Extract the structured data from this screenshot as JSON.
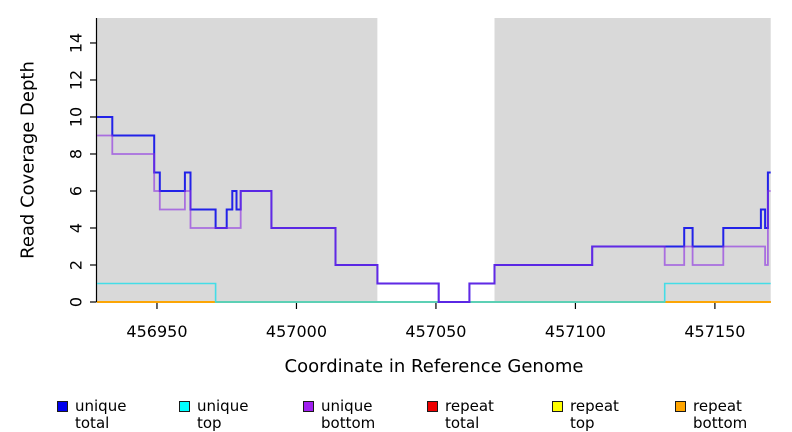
{
  "chart_data": {
    "type": "step-line",
    "title": "",
    "xlabel": "Coordinate in Reference Genome",
    "ylabel": "Read Coverage Depth",
    "xlim": [
      456928.5,
      457170
    ],
    "ylim": [
      0,
      15.35
    ],
    "x_ticks": [
      456950,
      457000,
      457050,
      457100,
      457150
    ],
    "y_ticks": [
      0,
      2,
      4,
      6,
      8,
      10,
      12,
      14
    ],
    "grid": false,
    "plot_background": "#d9d9d9",
    "unshaded_band": {
      "from": 457029,
      "to": 457071,
      "color": "#ffffff"
    },
    "zero_line_blend": {
      "from": 456971,
      "to": 457132,
      "color": "#7cc47c"
    },
    "axis_color": "#000000",
    "series": [
      {
        "name": "unique total",
        "color": "#2222e8",
        "swatch_color": "#0000ee",
        "width": 2,
        "opacity": 1,
        "steps": [
          [
            456928.5,
            10
          ],
          [
            456934,
            9
          ],
          [
            456949,
            7
          ],
          [
            456951,
            6
          ],
          [
            456960,
            7
          ],
          [
            456962,
            5
          ],
          [
            456971,
            4
          ],
          [
            456975,
            5
          ],
          [
            456977,
            6
          ],
          [
            456978.5,
            5
          ],
          [
            456980,
            6
          ],
          [
            456991,
            4
          ],
          [
            457014,
            2
          ],
          [
            457029,
            1
          ],
          [
            457051,
            0
          ],
          [
            457062,
            1
          ],
          [
            457071,
            2
          ],
          [
            457106,
            3
          ],
          [
            457139,
            4
          ],
          [
            457142,
            3
          ],
          [
            457153,
            4
          ],
          [
            457166.5,
            5
          ],
          [
            457168,
            4
          ],
          [
            457169,
            7
          ],
          [
            457170,
            7
          ]
        ]
      },
      {
        "name": "unique top",
        "color": "#33dde8",
        "swatch_color": "#00ffff",
        "width": 1.6,
        "opacity": 0.9,
        "steps": [
          [
            456928.5,
            1
          ],
          [
            456971,
            0
          ],
          [
            457132,
            1
          ],
          [
            457170,
            1
          ]
        ]
      },
      {
        "name": "unique bottom",
        "color": "#8a2be2",
        "swatch_color": "#a020f0",
        "width": 1.8,
        "opacity": 0.62,
        "steps": [
          [
            456928.5,
            9
          ],
          [
            456934,
            8
          ],
          [
            456949,
            6
          ],
          [
            456951,
            5
          ],
          [
            456960,
            6
          ],
          [
            456962,
            4
          ],
          [
            456980,
            6
          ],
          [
            456991,
            4
          ],
          [
            457014,
            2
          ],
          [
            457029,
            1
          ],
          [
            457051,
            0
          ],
          [
            457062,
            1
          ],
          [
            457071,
            2
          ],
          [
            457106,
            3
          ],
          [
            457132,
            2
          ],
          [
            457139,
            3
          ],
          [
            457142,
            2
          ],
          [
            457153,
            3
          ],
          [
            457168,
            2
          ],
          [
            457169,
            6
          ],
          [
            457170,
            6
          ]
        ]
      },
      {
        "name": "repeat total",
        "color": "#ee0000",
        "swatch_color": "#ee0000",
        "width": 1.5,
        "opacity": 1,
        "steps": [
          [
            456928.5,
            0
          ],
          [
            457170,
            0
          ]
        ]
      },
      {
        "name": "repeat top",
        "color": "#ffff00",
        "swatch_color": "#ffff00",
        "width": 1.5,
        "opacity": 1,
        "steps": [
          [
            456928.5,
            0
          ],
          [
            457170,
            0
          ]
        ]
      },
      {
        "name": "repeat bottom",
        "color": "#ffa500",
        "swatch_color": "#ffa500",
        "width": 1.8,
        "opacity": 1,
        "steps": [
          [
            456928.5,
            0
          ],
          [
            457170,
            0
          ]
        ]
      }
    ],
    "legend": [
      {
        "label": "unique total",
        "color": "#0000ee"
      },
      {
        "label": "unique top",
        "color": "#00ffff"
      },
      {
        "label": "unique bottom",
        "color": "#a020f0"
      },
      {
        "label": "repeat total",
        "color": "#ee0000"
      },
      {
        "label": "repeat top",
        "color": "#ffff00"
      },
      {
        "label": "repeat bottom",
        "color": "#ffa500"
      }
    ],
    "legend_position": "bottom"
  }
}
